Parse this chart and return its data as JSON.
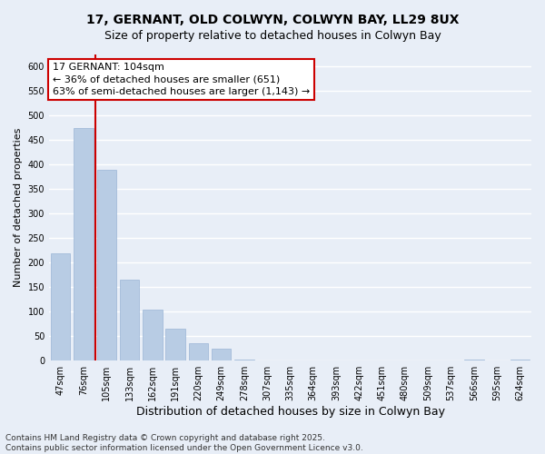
{
  "title1": "17, GERNANT, OLD COLWYN, COLWYN BAY, LL29 8UX",
  "title2": "Size of property relative to detached houses in Colwyn Bay",
  "xlabel": "Distribution of detached houses by size in Colwyn Bay",
  "ylabel": "Number of detached properties",
  "categories": [
    "47sqm",
    "76sqm",
    "105sqm",
    "133sqm",
    "162sqm",
    "191sqm",
    "220sqm",
    "249sqm",
    "278sqm",
    "307sqm",
    "335sqm",
    "364sqm",
    "393sqm",
    "422sqm",
    "451sqm",
    "480sqm",
    "509sqm",
    "537sqm",
    "566sqm",
    "595sqm",
    "624sqm"
  ],
  "values": [
    220,
    475,
    390,
    165,
    105,
    65,
    35,
    25,
    3,
    0,
    0,
    0,
    0,
    0,
    0,
    0,
    0,
    0,
    2,
    0,
    2
  ],
  "bar_color": "#b8cce4",
  "bar_edge_color": "#9ab5d5",
  "vline_color": "#cc0000",
  "vline_index": 2,
  "annotation_text_line1": "17 GERNANT: 104sqm",
  "annotation_text_line2": "← 36% of detached houses are smaller (651)",
  "annotation_text_line3": "63% of semi-detached houses are larger (1,143) →",
  "annot_box_edgecolor": "#cc0000",
  "annot_box_facecolor": "#ffffff",
  "ylim": [
    0,
    625
  ],
  "yticks": [
    0,
    50,
    100,
    150,
    200,
    250,
    300,
    350,
    400,
    450,
    500,
    550,
    600
  ],
  "footer1": "Contains HM Land Registry data © Crown copyright and database right 2025.",
  "footer2": "Contains public sector information licensed under the Open Government Licence v3.0.",
  "bg_color": "#e8eef7",
  "grid_color": "#ffffff",
  "title1_fontsize": 10,
  "title2_fontsize": 9,
  "ylabel_fontsize": 8,
  "xlabel_fontsize": 9,
  "tick_fontsize": 7,
  "annot_fontsize": 8,
  "footer_fontsize": 6.5
}
